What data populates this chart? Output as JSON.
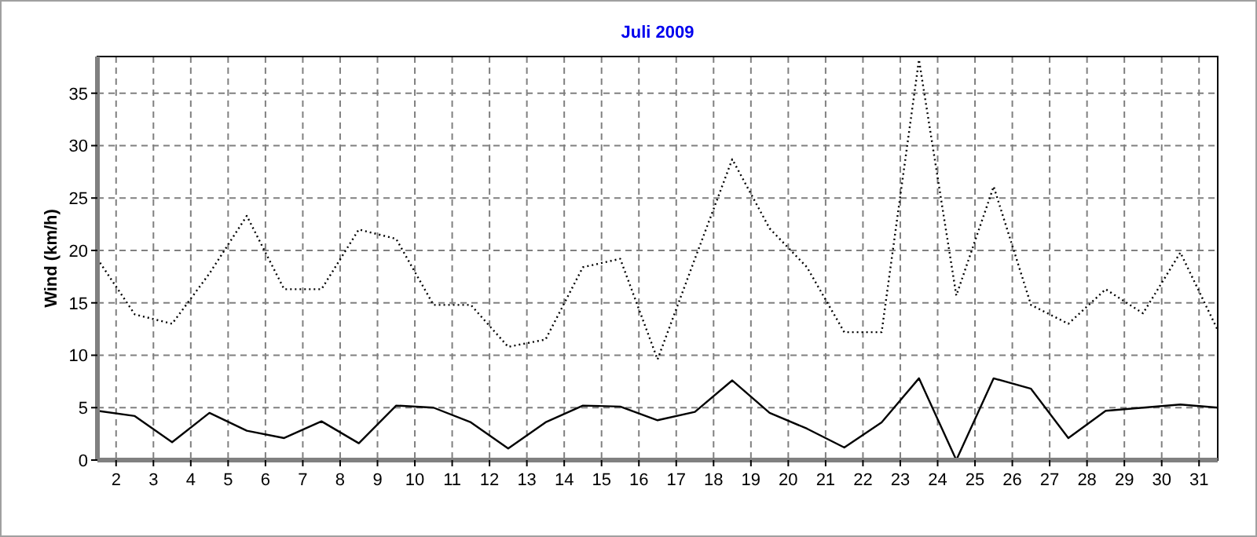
{
  "chart_data": {
    "type": "line",
    "title": "Juli 2009",
    "ylabel": "Wind  (km/h)",
    "x": [
      1.5,
      2.5,
      3.5,
      4.5,
      5.5,
      6.5,
      7.5,
      8.5,
      9.5,
      10.5,
      11.5,
      12.5,
      13.5,
      14.5,
      15.5,
      16.5,
      17.5,
      18.5,
      19.5,
      20.5,
      21.5,
      22.5,
      23.5,
      24.5,
      25.5,
      26.5,
      27.5,
      28.5,
      29.5,
      30.5,
      31.5
    ],
    "xlim": [
      1.5,
      31.5
    ],
    "xticks": [
      2,
      3,
      4,
      5,
      6,
      7,
      8,
      9,
      10,
      11,
      12,
      13,
      14,
      15,
      16,
      17,
      18,
      19,
      20,
      21,
      22,
      23,
      24,
      25,
      26,
      27,
      28,
      29,
      30,
      31
    ],
    "ylim": [
      0,
      38.5
    ],
    "yticks": [
      0,
      5,
      10,
      15,
      20,
      25,
      30,
      35
    ],
    "grid": true,
    "marker": "none",
    "series": [
      {
        "color": "#000000",
        "line_style": "dotted",
        "values": [
          19.2,
          13.9,
          13.0,
          17.8,
          23.3,
          16.3,
          16.3,
          22.0,
          21.1,
          14.8,
          14.8,
          10.8,
          11.5,
          18.4,
          19.2,
          9.6,
          19.2,
          28.7,
          22.1,
          18.4,
          12.2,
          12.2,
          38.2,
          15.7,
          26.1,
          14.8,
          13.0,
          16.3,
          14.0,
          19.8,
          12.4
        ]
      },
      {
        "color": "#000000",
        "line_style": "solid",
        "values": [
          4.7,
          4.2,
          1.7,
          4.5,
          2.8,
          2.1,
          3.7,
          1.6,
          5.2,
          5.0,
          3.6,
          1.1,
          3.6,
          5.2,
          5.1,
          3.8,
          4.6,
          7.6,
          4.5,
          3.0,
          1.2,
          3.6,
          7.8,
          0,
          7.8,
          6.8,
          2.1,
          4.7,
          5.0,
          5.3,
          5.0
        ]
      }
    ]
  }
}
